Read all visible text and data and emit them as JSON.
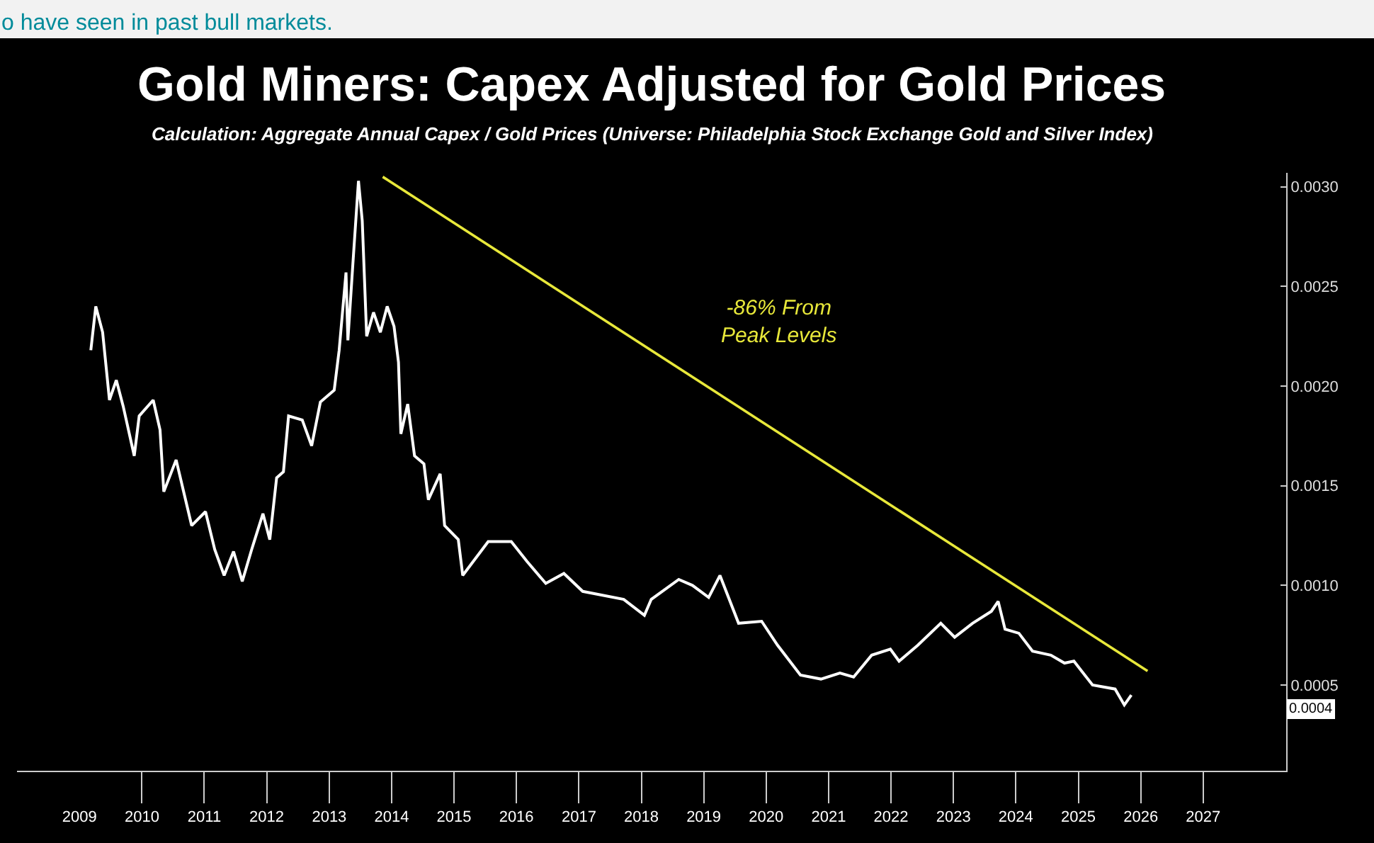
{
  "chart_data": {
    "type": "line",
    "title": "Gold Miners: Capex Adjusted for Gold Prices",
    "subtitle": "Calculation: Aggregate Annual Capex / Gold Prices (Universe: Philadelphia Stock Exchange Gold and Silver Index)",
    "series": [
      {
        "color": "#ffffff",
        "x": [
          "2009-03-08",
          "2009-04-06",
          "2009-05-16",
          "2009-06-25",
          "2009-08-04",
          "2009-09-13",
          "2009-11-17",
          "2009-12-16",
          "2010-03-08",
          "2010-04-17",
          "2010-05-09",
          "2010-07-20",
          "2010-10-19",
          "2011-01-08",
          "2011-03-03",
          "2011-04-27",
          "2011-06-21",
          "2011-08-11",
          "2011-10-05",
          "2011-12-10",
          "2012-01-19",
          "2012-02-28",
          "2012-04-08",
          "2012-05-08",
          "2012-07-27",
          "2012-09-20",
          "2012-11-10",
          "2013-01-30",
          "2013-02-28",
          "2013-04-09",
          "2013-04-20",
          "2013-05-19",
          "2013-06-21",
          "2013-07-13",
          "2013-08-08",
          "2013-09-17",
          "2013-10-27",
          "2013-12-06",
          "2014-01-15",
          "2014-02-10",
          "2014-02-24",
          "2014-04-05",
          "2014-05-15",
          "2014-07-09",
          "2014-08-04",
          "2014-10-12",
          "2014-11-07",
          "2015-01-26",
          "2015-02-21",
          "2015-07-20",
          "2015-12-02",
          "2016-03-03",
          "2016-06-21",
          "2016-10-05",
          "2017-01-23",
          "2017-09-20",
          "2018-01-19",
          "2018-02-28",
          "2018-08-08",
          "2018-10-27",
          "2019-01-30",
          "2019-04-06",
          "2019-07-24",
          "2019-12-06",
          "2020-03-08",
          "2020-07-20",
          "2020-11-17",
          "2021-03-08",
          "2021-05-27",
          "2021-09-10",
          "2021-12-28",
          "2022-02-17",
          "2022-06-07",
          "2022-10-19",
          "2023-01-08",
          "2023-04-23",
          "2023-08-11",
          "2023-09-20",
          "2023-10-30",
          "2024-01-19",
          "2024-04-08",
          "2024-07-24",
          "2024-10-12",
          "2024-12-06",
          "2025-03-25",
          "2025-08-04",
          "2025-09-27",
          "2025-11-07"
        ],
        "values": [
          0.00218,
          0.0024,
          0.00227,
          0.00193,
          0.00203,
          0.0019,
          0.00165,
          0.00185,
          0.00193,
          0.00178,
          0.00147,
          0.00163,
          0.0013,
          0.00137,
          0.00118,
          0.00105,
          0.00117,
          0.00102,
          0.00118,
          0.00136,
          0.00123,
          0.00154,
          0.00157,
          0.00185,
          0.00183,
          0.0017,
          0.00192,
          0.00198,
          0.00218,
          0.00257,
          0.00223,
          0.00261,
          0.00303,
          0.00283,
          0.00225,
          0.00237,
          0.00227,
          0.0024,
          0.0023,
          0.00212,
          0.00176,
          0.00191,
          0.00165,
          0.00161,
          0.00143,
          0.00156,
          0.0013,
          0.00123,
          0.00105,
          0.00122,
          0.00122,
          0.00112,
          0.00101,
          0.00106,
          0.00097,
          0.00093,
          0.00085,
          0.00093,
          0.00103,
          0.001,
          0.00094,
          0.00105,
          0.00081,
          0.00082,
          0.0007,
          0.00055,
          0.00053,
          0.00056,
          0.00054,
          0.00065,
          0.00068,
          0.00062,
          0.0007,
          0.00081,
          0.00074,
          0.00081,
          0.00087,
          0.00092,
          0.00078,
          0.00076,
          0.00067,
          0.00065,
          0.00061,
          0.00062,
          0.0005,
          0.00048,
          0.0004,
          0.00045
        ]
      },
      {
        "type": "line",
        "color": "#e8e83a",
        "x": [
          "2013-11-10",
          "2026-02-10"
        ],
        "values": [
          0.00305,
          0.00057
        ]
      }
    ],
    "xlim": [
      "2008-01-01",
      "2028-05-01"
    ],
    "xticks": [
      {
        "value": "2009-01-01",
        "label": "2009"
      },
      {
        "value": "2010-01-01",
        "label": "2010"
      },
      {
        "value": "2011-01-01",
        "label": "2011"
      },
      {
        "value": "2012-01-01",
        "label": "2012"
      },
      {
        "value": "2013-01-01",
        "label": "2013"
      },
      {
        "value": "2014-01-01",
        "label": "2014"
      },
      {
        "value": "2015-01-01",
        "label": "2015"
      },
      {
        "value": "2016-01-01",
        "label": "2016"
      },
      {
        "value": "2017-01-01",
        "label": "2017"
      },
      {
        "value": "2018-01-01",
        "label": "2018"
      },
      {
        "value": "2019-01-01",
        "label": "2019"
      },
      {
        "value": "2020-01-01",
        "label": "2020"
      },
      {
        "value": "2021-01-01",
        "label": "2021"
      },
      {
        "value": "2022-01-01",
        "label": "2022"
      },
      {
        "value": "2023-01-01",
        "label": "2023"
      },
      {
        "value": "2024-01-01",
        "label": "2024"
      },
      {
        "value": "2025-01-01",
        "label": "2025"
      },
      {
        "value": "2026-01-01",
        "label": "2026"
      },
      {
        "value": "2027-01-01",
        "label": "2027"
      }
    ],
    "ylim": [
      7e-05,
      0.00307
    ],
    "yticks": [
      {
        "value": 0.0005,
        "label": "0.0005"
      },
      {
        "value": 0.001,
        "label": "0.0010"
      },
      {
        "value": 0.0015,
        "label": "0.0015"
      },
      {
        "value": 0.002,
        "label": "0.0020"
      },
      {
        "value": 0.0025,
        "label": "0.0025"
      },
      {
        "value": 0.003,
        "label": "0.0030"
      }
    ],
    "grid": false,
    "line_style": "solid",
    "marker": "none",
    "annotations": [
      "-86% From\nPeak Levels",
      "0.0004",
      "o have seen in past bull markets."
    ]
  }
}
